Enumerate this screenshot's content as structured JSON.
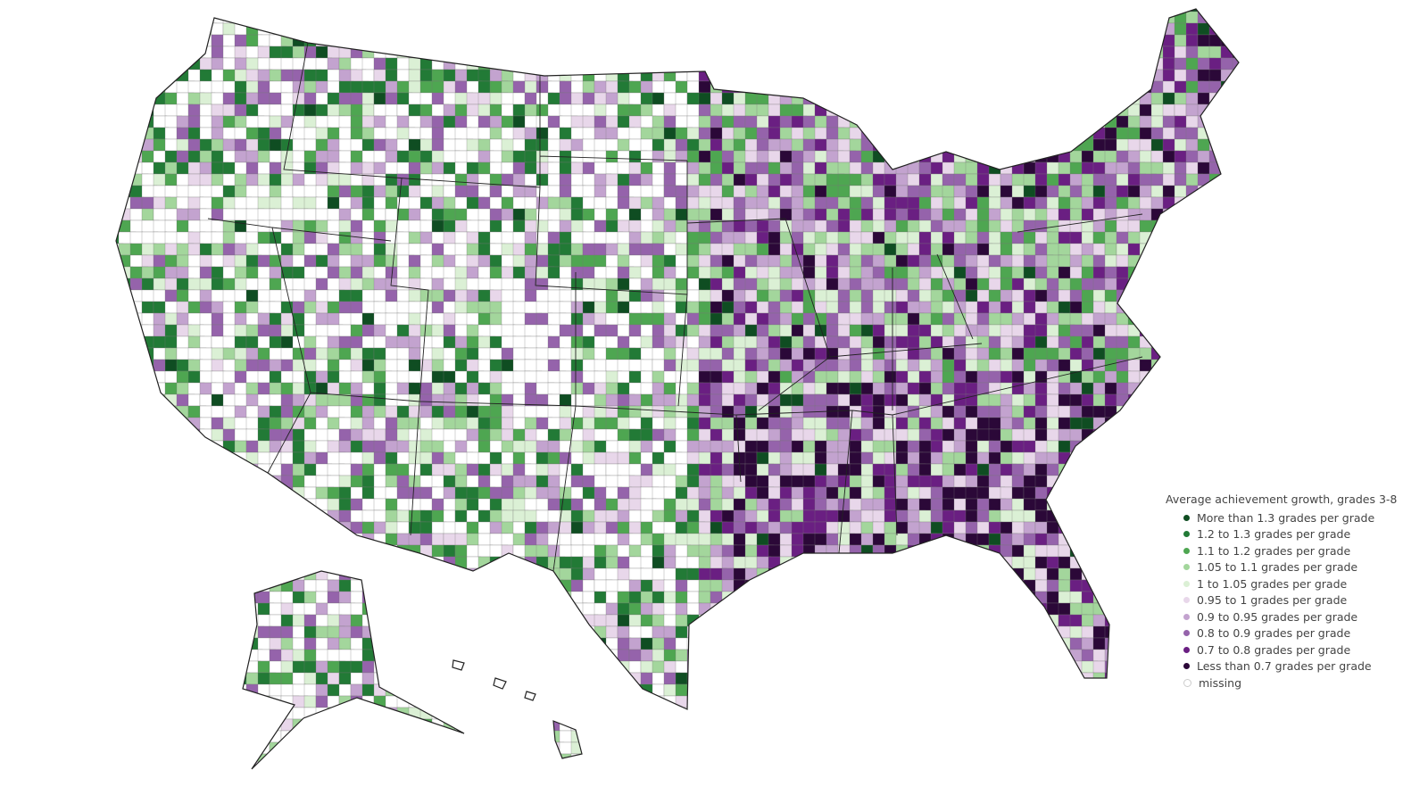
{
  "legend": {
    "title": "Average achievement growth, grades 3-8",
    "items": [
      {
        "label": "More than 1.3 grades per grade",
        "color": "#0f4d22"
      },
      {
        "label": "1.2 to 1.3 grades per grade",
        "color": "#227a36"
      },
      {
        "label": "1.1 to 1.2 grades per grade",
        "color": "#4ea651"
      },
      {
        "label": "1.05 to 1.1 grades per grade",
        "color": "#a3d69c"
      },
      {
        "label": "1 to 1.05 grades per grade",
        "color": "#dbf0d5"
      },
      {
        "label": "0.95 to 1 grades per grade",
        "color": "#e8d7ea"
      },
      {
        "label": "0.9 to 0.95 grades per grade",
        "color": "#c3a3cf"
      },
      {
        "label": "0.8 to 0.9 grades per grade",
        "color": "#9563ab"
      },
      {
        "label": "0.7 to 0.8 grades per grade",
        "color": "#6a1f82"
      },
      {
        "label": "Less than 0.7 grades per grade",
        "color": "#2b0838"
      },
      {
        "label": "missing",
        "color": "#ffffff"
      }
    ]
  }
}
